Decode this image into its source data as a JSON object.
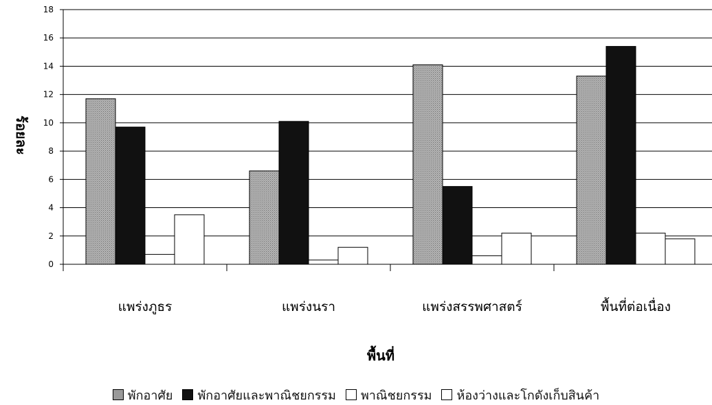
{
  "chart_data": {
    "type": "bar",
    "title": "",
    "xlabel": "พื้นที่",
    "ylabel": "ร้อยละ",
    "ylim": [
      0,
      18
    ],
    "yticks": [
      0,
      2,
      4,
      6,
      8,
      10,
      12,
      14,
      16,
      18
    ],
    "grid": true,
    "legend_position": "bottom",
    "categories": [
      "แพร่งภูธร",
      "แพร่งนรา",
      "แพร่งสรรพศาสตร์",
      "พื้นที่ต่อเนื่อง"
    ],
    "series": [
      {
        "name": "พักอาศัย",
        "color": "#9a9a9a",
        "values": [
          11.7,
          6.6,
          14.1,
          13.3
        ]
      },
      {
        "name": "พักอาศัยและพาณิชยกรรม",
        "color": "#111111",
        "values": [
          9.7,
          10.1,
          5.5,
          15.4
        ]
      },
      {
        "name": "พาณิชยกรรม",
        "color": "#ffffff",
        "values": [
          0.7,
          0.3,
          0.6,
          2.2
        ]
      },
      {
        "name": "ห้องว่างและโกดังเก็บสินค้า",
        "color": "#ffffff",
        "values": [
          3.5,
          1.2,
          2.2,
          1.8
        ]
      }
    ]
  }
}
